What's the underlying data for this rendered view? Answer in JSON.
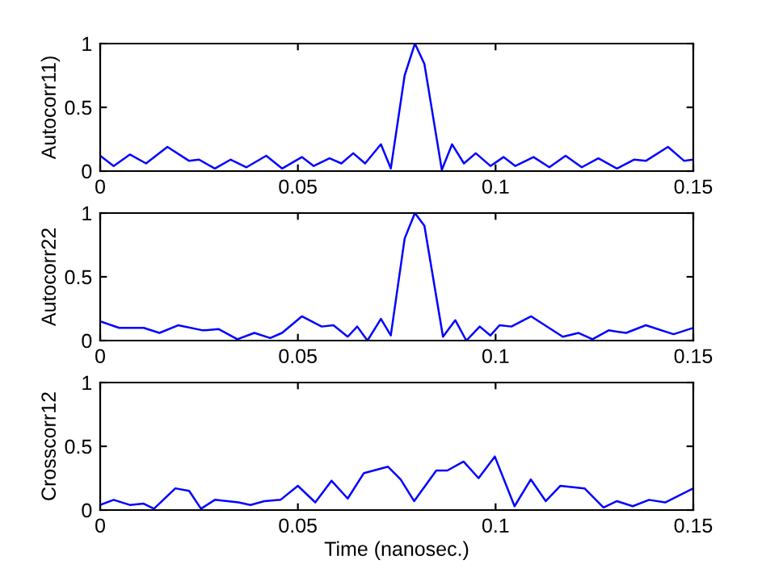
{
  "chart_data": [
    {
      "type": "line",
      "ylabel": "Autocorr11)",
      "xlim": [
        0,
        0.15
      ],
      "ylim": [
        0,
        1
      ],
      "xticks": [
        0,
        0.05,
        0.1,
        0.15
      ],
      "yticks": [
        0,
        0.5,
        1
      ],
      "series": [
        {
          "color": "#0000ff",
          "x": [
            0,
            0.0034,
            0.0075,
            0.0116,
            0.017,
            0.0225,
            0.025,
            0.029,
            0.033,
            0.037,
            0.042,
            0.046,
            0.051,
            0.054,
            0.058,
            0.061,
            0.064,
            0.067,
            0.071,
            0.0735,
            0.077,
            0.0796,
            0.082,
            0.0864,
            0.089,
            0.092,
            0.095,
            0.0987,
            0.102,
            0.105,
            0.1096,
            0.1136,
            0.1177,
            0.1218,
            0.126,
            0.1307,
            0.135,
            0.138,
            0.1436,
            0.1477,
            0.15
          ],
          "values": [
            0.12,
            0.04,
            0.13,
            0.06,
            0.19,
            0.08,
            0.09,
            0.02,
            0.09,
            0.03,
            0.12,
            0.02,
            0.11,
            0.04,
            0.1,
            0.06,
            0.14,
            0.06,
            0.21,
            0.02,
            0.75,
            1.0,
            0.84,
            0.01,
            0.21,
            0.06,
            0.14,
            0.04,
            0.11,
            0.04,
            0.11,
            0.03,
            0.12,
            0.03,
            0.1,
            0.02,
            0.09,
            0.08,
            0.19,
            0.08,
            0.09
          ]
        }
      ]
    },
    {
      "type": "line",
      "ylabel": "Autocorr22",
      "xlim": [
        0,
        0.15
      ],
      "ylim": [
        0,
        1
      ],
      "xticks": [
        0,
        0.05,
        0.1,
        0.15
      ],
      "yticks": [
        0,
        0.5,
        1
      ],
      "series": [
        {
          "color": "#0000ff",
          "x": [
            0,
            0.0048,
            0.011,
            0.015,
            0.0197,
            0.026,
            0.03,
            0.0347,
            0.039,
            0.043,
            0.046,
            0.051,
            0.056,
            0.059,
            0.0626,
            0.065,
            0.0676,
            0.071,
            0.0735,
            0.077,
            0.0796,
            0.082,
            0.0867,
            0.0898,
            0.0926,
            0.096,
            0.0987,
            0.101,
            0.104,
            0.109,
            0.112,
            0.117,
            0.121,
            0.1245,
            0.1286,
            0.133,
            0.138,
            0.145,
            0.15
          ],
          "values": [
            0.15,
            0.1,
            0.1,
            0.06,
            0.12,
            0.08,
            0.09,
            0.01,
            0.06,
            0.02,
            0.06,
            0.19,
            0.11,
            0.12,
            0.03,
            0.11,
            0.0,
            0.17,
            0.04,
            0.8,
            1.0,
            0.9,
            0.03,
            0.16,
            0.0,
            0.11,
            0.04,
            0.12,
            0.11,
            0.19,
            0.13,
            0.03,
            0.06,
            0.01,
            0.08,
            0.06,
            0.12,
            0.05,
            0.1
          ]
        }
      ]
    },
    {
      "type": "line",
      "ylabel": "Crosscorr12",
      "xlabel": "Time (nanosec.)",
      "xlim": [
        0,
        0.15
      ],
      "ylim": [
        0,
        1
      ],
      "xticks": [
        0,
        0.05,
        0.1,
        0.15
      ],
      "yticks": [
        0,
        0.5,
        1
      ],
      "series": [
        {
          "color": "#0000ff",
          "x": [
            0,
            0.0034,
            0.0075,
            0.011,
            0.0136,
            0.019,
            0.0225,
            0.0255,
            0.029,
            0.035,
            0.038,
            0.0415,
            0.0456,
            0.05,
            0.0544,
            0.0585,
            0.0626,
            0.0667,
            0.0728,
            0.076,
            0.0794,
            0.085,
            0.0878,
            0.0919,
            0.0957,
            0.0998,
            0.1048,
            0.1089,
            0.1127,
            0.1164,
            0.1225,
            0.1273,
            0.1307,
            0.1347,
            0.1388,
            0.1429,
            0.15
          ],
          "values": [
            0.04,
            0.08,
            0.04,
            0.05,
            0.01,
            0.17,
            0.15,
            0.01,
            0.08,
            0.06,
            0.04,
            0.07,
            0.08,
            0.19,
            0.06,
            0.23,
            0.09,
            0.29,
            0.34,
            0.24,
            0.07,
            0.31,
            0.31,
            0.38,
            0.25,
            0.42,
            0.03,
            0.24,
            0.07,
            0.19,
            0.17,
            0.02,
            0.07,
            0.03,
            0.08,
            0.06,
            0.17
          ]
        }
      ]
    }
  ]
}
